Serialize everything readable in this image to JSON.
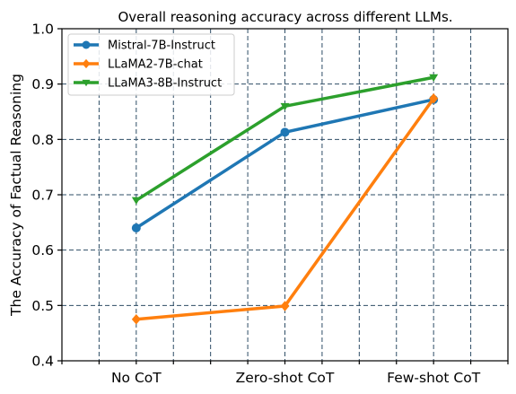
{
  "chart_data": {
    "type": "line",
    "title": "Overall reasoning accuracy across different LLMs.",
    "xlabel": "",
    "ylabel": "The Accuracy of Factual Reasoning",
    "categories": [
      "No CoT",
      "Zero-shot CoT",
      "Few-shot CoT"
    ],
    "ylim": [
      0.4,
      1.0
    ],
    "yticks": [
      0.4,
      0.5,
      0.6,
      0.7,
      0.8,
      0.9,
      1.0
    ],
    "ytick_labels": [
      "0.4",
      "0.5",
      "0.6",
      "0.7",
      "0.8",
      "0.9",
      "1.0"
    ],
    "grid": true,
    "legend_position": "top-left",
    "series": [
      {
        "name": "Mistral-7B-Instruct",
        "values": [
          0.64,
          0.813,
          0.872
        ],
        "color": "#1f77b4",
        "marker": "circle"
      },
      {
        "name": "LLaMA2-7B-chat",
        "values": [
          0.475,
          0.499,
          0.874
        ],
        "color": "#ff7f0e",
        "marker": "diamond"
      },
      {
        "name": "LLaMA3-8B-Instruct",
        "values": [
          0.69,
          0.86,
          0.912
        ],
        "color": "#2ca02c",
        "marker": "triangle-down"
      }
    ]
  }
}
